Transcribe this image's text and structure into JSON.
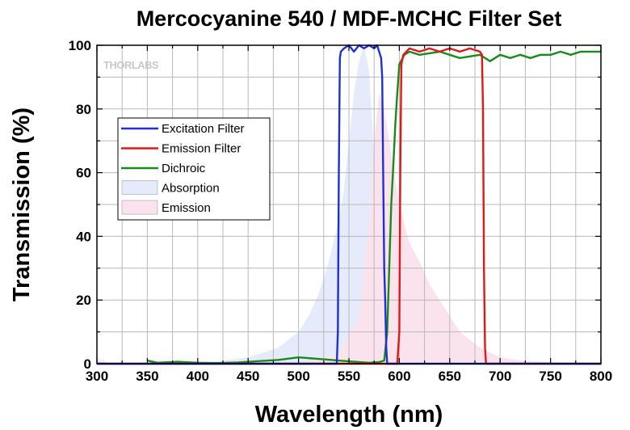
{
  "chart_data": {
    "type": "line",
    "title": "Mercocyanine 540 / MDF-MCHC Filter Set",
    "xlabel": "Wavelength (nm)",
    "ylabel": "Transmission (%)",
    "xlim": [
      300,
      800
    ],
    "ylim": [
      0,
      100
    ],
    "xticks": [
      "300",
      "350",
      "400",
      "450",
      "500",
      "550",
      "600",
      "650",
      "700",
      "750",
      "800"
    ],
    "yticks": [
      "0",
      "20",
      "40",
      "60",
      "80",
      "100"
    ],
    "grid": true,
    "legend_position": "upper-left",
    "watermark": "THORLABS",
    "series": [
      {
        "name": "Excitation Filter",
        "kind": "line",
        "color": "#1f2fd6",
        "x": [
          300,
          538,
          539,
          540,
          541,
          542,
          545,
          550,
          555,
          560,
          565,
          570,
          575,
          578,
          580,
          582,
          583,
          584,
          585,
          586,
          587,
          588,
          590,
          600,
          700,
          800
        ],
        "y": [
          0,
          0,
          10,
          60,
          96,
          98,
          99,
          100,
          98,
          100,
          99,
          100,
          99,
          100,
          98,
          96,
          90,
          60,
          30,
          20,
          5,
          0,
          0,
          0,
          0,
          0
        ]
      },
      {
        "name": "Emission Filter",
        "kind": "line",
        "color": "#e01818",
        "x": [
          300,
          598,
          600,
          601,
          602,
          604,
          610,
          620,
          630,
          640,
          650,
          660,
          670,
          680,
          682,
          683,
          684,
          685,
          686,
          690,
          700,
          800
        ],
        "y": [
          0,
          0,
          10,
          60,
          94,
          97,
          99,
          98,
          99,
          98,
          99,
          98,
          99,
          98,
          97,
          80,
          30,
          5,
          0,
          0,
          0,
          0
        ]
      },
      {
        "name": "Dichroic",
        "kind": "line",
        "color": "#1a8a1a",
        "x": [
          350,
          360,
          380,
          400,
          420,
          440,
          460,
          480,
          500,
          520,
          540,
          560,
          570,
          580,
          585,
          588,
          590,
          592,
          594,
          596,
          598,
          600,
          605,
          610,
          620,
          640,
          660,
          680,
          690,
          700,
          710,
          720,
          730,
          740,
          750,
          760,
          770,
          780,
          790,
          800
        ],
        "y": [
          1,
          0.3,
          0.6,
          0.3,
          0.2,
          0.4,
          0.8,
          1.2,
          2,
          1.5,
          1,
          0.5,
          0.3,
          0.5,
          1,
          10,
          30,
          50,
          62,
          75,
          85,
          94,
          97,
          98,
          97,
          98,
          96,
          97,
          95,
          97,
          96,
          97,
          96,
          97,
          97,
          98,
          97,
          98,
          98,
          98
        ]
      },
      {
        "name": "Absorption",
        "kind": "area",
        "color": "#e5ebfa",
        "x": [
          300,
          400,
          450,
          480,
          500,
          510,
          520,
          530,
          540,
          545,
          550,
          555,
          560,
          565,
          570,
          575,
          580,
          585,
          590,
          600,
          800
        ],
        "y": [
          0,
          0,
          2,
          5,
          10,
          15,
          22,
          32,
          45,
          55,
          70,
          85,
          95,
          100,
          92,
          65,
          35,
          15,
          5,
          0,
          0
        ]
      },
      {
        "name": "Emission",
        "kind": "area",
        "color": "#fbe3ed",
        "x": [
          300,
          302,
          304,
          306,
          310,
          500,
          540,
          560,
          570,
          575,
          580,
          585,
          590,
          600,
          610,
          620,
          630,
          640,
          650,
          660,
          680,
          700,
          720,
          750,
          800
        ],
        "y": [
          0,
          2,
          0.5,
          1.5,
          0,
          0,
          3,
          15,
          45,
          70,
          85,
          80,
          70,
          50,
          38,
          32,
          25,
          20,
          15,
          10,
          5,
          2,
          1,
          0.5,
          0
        ]
      }
    ]
  }
}
